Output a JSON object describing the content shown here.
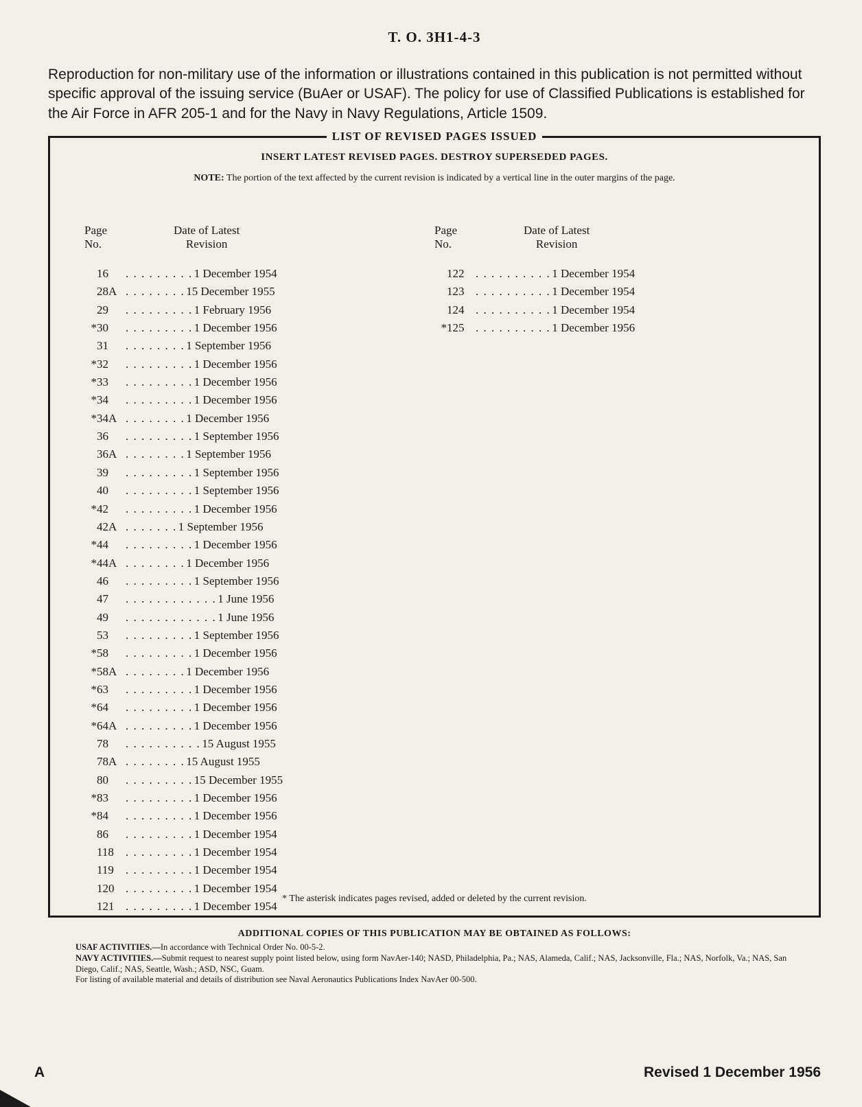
{
  "document": {
    "header": "T. O. 3H1-4-3",
    "intro_paragraph": "Reproduction for non-military use of the information or illustrations contained in this publication is not permitted without specific approval of the issuing service (BuAer or USAF). The policy for use of Classified Publications is established for the Air Force in AFR 205-1 and for the Navy in Navy Regulations, Article 1509.",
    "box_title": "LIST OF REVISED PAGES ISSUED",
    "insert_instruction": "INSERT LATEST REVISED PAGES. DESTROY SUPERSEDED PAGES.",
    "note_label": "NOTE:",
    "note_text": "The portion of the text affected by the current revision is indicated by a vertical line in the outer margins of the page.",
    "col_header_page_1": "Page",
    "col_header_page_2": "No.",
    "col_header_date_1": "Date of Latest",
    "col_header_date_2": "Revision",
    "asterisk_note": "* The asterisk indicates pages revised, added or deleted by the current revision.",
    "footer_title": "ADDITIONAL COPIES OF THIS PUBLICATION MAY BE OBTAINED AS FOLLOWS:",
    "footer_usaf_label": "USAF ACTIVITIES.—",
    "footer_usaf_text": "In accordance with Technical Order No. 00-5-2.",
    "footer_navy_label": "NAVY ACTIVITIES.—",
    "footer_navy_text": "Submit request to nearest supply point listed below, using form NavAer-140; NASD, Philadelphia, Pa.; NAS, Alameda, Calif.; NAS, Jacksonville, Fla.; NAS, Norfolk, Va.; NAS, San Diego, Calif.; NAS, Seattle, Wash.; ASD, NSC, Guam.",
    "footer_listing": "For listing of available material and details of distribution see Naval Aeronautics Publications Index NavAer 00-500.",
    "page_letter": "A",
    "revised_date": "Revised 1 December 1956"
  },
  "revisions_left": [
    {
      "ast": "",
      "page": "16",
      "dots": ". . . . . . . . .",
      "date": "1 December 1954"
    },
    {
      "ast": "",
      "page": "28A",
      "dots": ". . . . . . . .",
      "date": "15 December 1955"
    },
    {
      "ast": "",
      "page": "29",
      "dots": ". . . . . . . . .",
      "date": "1 February  1956"
    },
    {
      "ast": "*",
      "page": "30",
      "dots": ". . . . . . . . .",
      "date": "1 December 1956"
    },
    {
      "ast": "",
      "page": "31",
      "dots": ". . . . . . . .",
      "date": "1 September 1956"
    },
    {
      "ast": "*",
      "page": "32",
      "dots": ". . . . . . . . .",
      "date": "1 December 1956"
    },
    {
      "ast": "*",
      "page": "33",
      "dots": ". . . . . . . . .",
      "date": "1 December 1956"
    },
    {
      "ast": "*",
      "page": "34",
      "dots": ". . . . . . . . .",
      "date": "1 December 1956"
    },
    {
      "ast": "*",
      "page": "34A",
      "dots": ". . . . . . . .",
      "date": "1 December 1956"
    },
    {
      "ast": "",
      "page": "36",
      "dots": ". . . . . . . . .",
      "date": "1 September 1956"
    },
    {
      "ast": "",
      "page": "36A",
      "dots": ". . . . . . . .",
      "date": "1 September 1956"
    },
    {
      "ast": "",
      "page": "39",
      "dots": ". . . . . . . . .",
      "date": "1 September 1956"
    },
    {
      "ast": "",
      "page": "40",
      "dots": ". . . . . . . . .",
      "date": "1 September 1956"
    },
    {
      "ast": "*",
      "page": "42",
      "dots": ". . . . . . . . .",
      "date": " 1 December 1956"
    },
    {
      "ast": "",
      "page": "42A",
      "dots": ". . . . . . .",
      "date": " 1 September 1956"
    },
    {
      "ast": "*",
      "page": "44",
      "dots": ". . . . . . . . .",
      "date": " 1 December 1956"
    },
    {
      "ast": "*",
      "page": "44A",
      "dots": ". . . . . . . .",
      "date": " 1 December 1956"
    },
    {
      "ast": "",
      "page": "46",
      "dots": ". . . . . . . . .",
      "date": " 1 September 1956"
    },
    {
      "ast": "",
      "page": "47",
      "dots": ". . . . . . . . . . . .",
      "date": " 1 June 1956"
    },
    {
      "ast": "",
      "page": "49",
      "dots": ". . . . . . . . . . . .",
      "date": "  1 June 1956"
    },
    {
      "ast": "",
      "page": "53",
      "dots": ". . . . . . . . .",
      "date": " 1 September 1956"
    },
    {
      "ast": "*",
      "page": "58",
      "dots": " . . . . . . . . .",
      "date": "1 December 1956"
    },
    {
      "ast": "*",
      "page": "58A",
      "dots": ". . . . . . . .",
      "date": " 1 December 1956"
    },
    {
      "ast": "*",
      "page": "63",
      "dots": ". . . . . . . . .",
      "date": " 1 December 1956"
    },
    {
      "ast": "*",
      "page": "64",
      "dots": ". . . . . . . . .",
      "date": " 1 December 1956"
    },
    {
      "ast": "*",
      "page": "64A",
      "dots": " . . . . . . . . .",
      "date": "1 December 1956"
    },
    {
      "ast": "",
      "page": "78",
      "dots": ". . . . . . . . . .",
      "date": " 15 August  1955"
    },
    {
      "ast": "",
      "page": "78A",
      "dots": " . . . . . . . .",
      "date": " 15 August  1955"
    },
    {
      "ast": "",
      "page": "80",
      "dots": " . . . . . . . . .",
      "date": "15 December 1955"
    },
    {
      "ast": "*",
      "page": "83",
      "dots": " . . . . . . . . .",
      "date": " 1 December 1956"
    },
    {
      "ast": "*",
      "page": "84",
      "dots": " . . . . . . . . .",
      "date": " 1 December 1956"
    },
    {
      "ast": "",
      "page": "86",
      "dots": " . . . . . . . . .",
      "date": " 1 December 1954"
    },
    {
      "ast": "",
      "page": "118",
      "dots": " . . . . . . . . .",
      "date": " 1 December 1954"
    },
    {
      "ast": "",
      "page": "119",
      "dots": " . . . . . . . . .",
      "date": " 1 December 1954"
    },
    {
      "ast": "",
      "page": "120",
      "dots": " . . . . . . . . .",
      "date": " 1 December 1954"
    },
    {
      "ast": "",
      "page": "121",
      "dots": " . . . . . . . . .",
      "date": " 1 December 1954"
    }
  ],
  "revisions_right": [
    {
      "ast": "",
      "page": "122",
      "dots": " . . . . . . . . . .",
      "date": " 1 December 1954"
    },
    {
      "ast": "",
      "page": "123",
      "dots": " . . . . . . . . . .",
      "date": " 1 December 1954"
    },
    {
      "ast": "",
      "page": "124",
      "dots": " . . . . . . . . . .",
      "date": " 1 December 1954"
    },
    {
      "ast": "*",
      "page": " 125",
      "dots": " . . . . . . . . . .",
      "date": " 1 December 1956"
    }
  ],
  "styling": {
    "background_color": "#f2efe8",
    "text_color": "#1a1a1a",
    "border_color": "#1a1a1a",
    "border_width": 3,
    "header_fontsize": 21,
    "intro_fontsize": 21,
    "box_title_fontsize": 17,
    "insert_fontsize": 15,
    "note_fontsize": 14,
    "col_header_fontsize": 17,
    "row_fontsize": 17,
    "footer_title_fontsize": 14,
    "footer_text_fontsize": 12.5,
    "page_footer_fontsize": 21
  }
}
